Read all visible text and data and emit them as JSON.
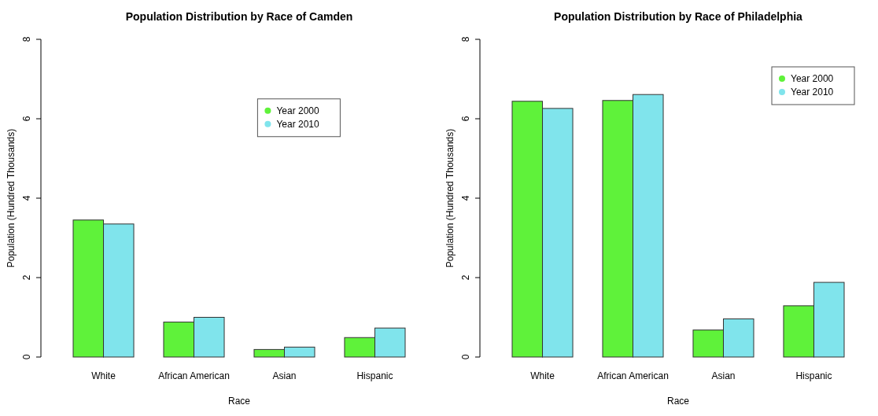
{
  "chart_data": [
    {
      "type": "bar",
      "title": "Population Distribution by Race of Camden",
      "xlabel": "Race",
      "ylabel": "Population (Hundred Thousands)",
      "categories": [
        "White",
        "African American",
        "Asian",
        "Hispanic"
      ],
      "series": [
        {
          "name": "Year 2000",
          "color": "#5ff23a",
          "values": [
            3.45,
            0.88,
            0.19,
            0.49
          ]
        },
        {
          "name": "Year 2010",
          "color": "#80e4ec",
          "values": [
            3.35,
            1.0,
            0.25,
            0.73
          ]
        }
      ],
      "ylim": [
        0,
        8
      ],
      "yticks": [
        0,
        2,
        4,
        6,
        8
      ],
      "legend": "top",
      "marker": "circle"
    },
    {
      "type": "bar",
      "title": "Population Distribution by Race of Philadelphia",
      "xlabel": "Race",
      "ylabel": "Population (Hundred Thousands)",
      "categories": [
        "White",
        "African American",
        "Asian",
        "Hispanic"
      ],
      "series": [
        {
          "name": "Year 2000",
          "color": "#5ff23a",
          "values": [
            6.44,
            6.46,
            0.68,
            1.29
          ]
        },
        {
          "name": "Year 2010",
          "color": "#80e4ec",
          "values": [
            6.26,
            6.61,
            0.96,
            1.88
          ]
        }
      ],
      "ylim": [
        0,
        8
      ],
      "yticks": [
        0,
        2,
        4,
        6,
        8
      ],
      "legend": "top right",
      "marker": "circle"
    }
  ]
}
